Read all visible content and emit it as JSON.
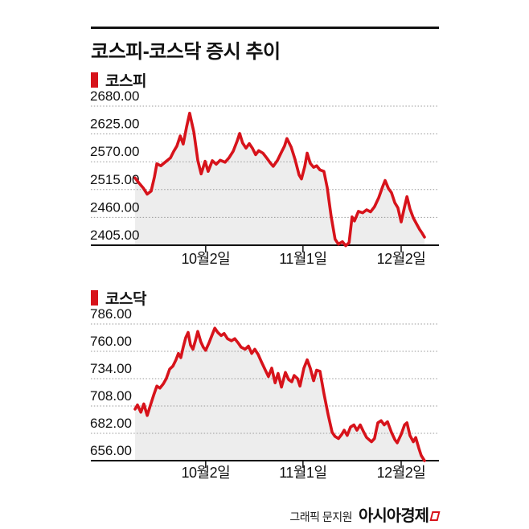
{
  "page": {
    "title": "코스피-코스닥 증시 추이"
  },
  "footer": {
    "credit": "그래픽 문지원",
    "brand": "아시아경제",
    "brand_mark_icon": "red-flag-mark"
  },
  "colors": {
    "accent": "#d7131b",
    "area_fill": "#ededed",
    "grid": "#9a9a9a",
    "axis": "#111111",
    "text": "#111111"
  },
  "chart_data": [
    {
      "type": "area",
      "title": "코스피",
      "ylim": [
        2405,
        2680
      ],
      "grid": "dotted-horizontal",
      "legend_position": "top-left",
      "y_ticks": [
        {
          "label": "2680.00",
          "value": 2680
        },
        {
          "label": "2625.00",
          "value": 2625
        },
        {
          "label": "2570.00",
          "value": 2570
        },
        {
          "label": "2515.00",
          "value": 2515
        },
        {
          "label": "2460.00",
          "value": 2460
        },
        {
          "label": "2405.00",
          "value": 2405
        }
      ],
      "x_ticks": [
        {
          "label": "10월2일",
          "xf": 0.233
        },
        {
          "label": "11월1일",
          "xf": 0.554
        },
        {
          "label": "12월2일",
          "xf": 0.878
        }
      ],
      "points": [
        [
          0.0,
          2538
        ],
        [
          0.013,
          2528
        ],
        [
          0.027,
          2518
        ],
        [
          0.04,
          2506
        ],
        [
          0.053,
          2512
        ],
        [
          0.064,
          2540
        ],
        [
          0.072,
          2566
        ],
        [
          0.085,
          2562
        ],
        [
          0.101,
          2570
        ],
        [
          0.117,
          2578
        ],
        [
          0.127,
          2590
        ],
        [
          0.138,
          2601
        ],
        [
          0.149,
          2621
        ],
        [
          0.159,
          2605
        ],
        [
          0.17,
          2639
        ],
        [
          0.18,
          2666
        ],
        [
          0.194,
          2629
        ],
        [
          0.207,
          2573
        ],
        [
          0.218,
          2546
        ],
        [
          0.231,
          2571
        ],
        [
          0.241,
          2551
        ],
        [
          0.255,
          2572
        ],
        [
          0.268,
          2565
        ],
        [
          0.281,
          2573
        ],
        [
          0.297,
          2569
        ],
        [
          0.31,
          2578
        ],
        [
          0.324,
          2591
        ],
        [
          0.337,
          2611
        ],
        [
          0.345,
          2626
        ],
        [
          0.355,
          2607
        ],
        [
          0.366,
          2597
        ],
        [
          0.377,
          2606
        ],
        [
          0.387,
          2597
        ],
        [
          0.398,
          2584
        ],
        [
          0.408,
          2592
        ],
        [
          0.422,
          2587
        ],
        [
          0.435,
          2577
        ],
        [
          0.446,
          2568
        ],
        [
          0.456,
          2561
        ],
        [
          0.47,
          2573
        ],
        [
          0.483,
          2589
        ],
        [
          0.493,
          2601
        ],
        [
          0.501,
          2616
        ],
        [
          0.515,
          2599
        ],
        [
          0.528,
          2574
        ],
        [
          0.541,
          2544
        ],
        [
          0.549,
          2536
        ],
        [
          0.56,
          2561
        ],
        [
          0.568,
          2587
        ],
        [
          0.578,
          2567
        ],
        [
          0.589,
          2559
        ],
        [
          0.599,
          2562
        ],
        [
          0.61,
          2554
        ],
        [
          0.623,
          2551
        ],
        [
          0.634,
          2519
        ],
        [
          0.647,
          2462
        ],
        [
          0.66,
          2417
        ],
        [
          0.671,
          2407
        ],
        [
          0.684,
          2412
        ],
        [
          0.695,
          2404
        ],
        [
          0.706,
          2410
        ],
        [
          0.716,
          2461
        ],
        [
          0.724,
          2453
        ],
        [
          0.737,
          2472
        ],
        [
          0.751,
          2469
        ],
        [
          0.764,
          2475
        ],
        [
          0.777,
          2471
        ],
        [
          0.79,
          2481
        ],
        [
          0.804,
          2499
        ],
        [
          0.817,
          2521
        ],
        [
          0.825,
          2533
        ],
        [
          0.836,
          2517
        ],
        [
          0.846,
          2509
        ],
        [
          0.857,
          2489
        ],
        [
          0.867,
          2479
        ],
        [
          0.878,
          2451
        ],
        [
          0.889,
          2481
        ],
        [
          0.897,
          2501
        ],
        [
          0.907,
          2477
        ],
        [
          0.918,
          2459
        ],
        [
          0.929,
          2447
        ],
        [
          0.939,
          2436
        ],
        [
          0.947,
          2429
        ],
        [
          0.955,
          2421
        ]
      ]
    },
    {
      "type": "area",
      "title": "코스닥",
      "ylim": [
        656,
        786
      ],
      "grid": "dotted-horizontal",
      "legend_position": "top-left",
      "y_ticks": [
        {
          "label": "786.00",
          "value": 786
        },
        {
          "label": "760.00",
          "value": 760
        },
        {
          "label": "734.00",
          "value": 734
        },
        {
          "label": "708.00",
          "value": 708
        },
        {
          "label": "682.00",
          "value": 682
        },
        {
          "label": "656.00",
          "value": 656
        }
      ],
      "x_ticks": [
        {
          "label": "10월2일",
          "xf": 0.233
        },
        {
          "label": "11월1일",
          "xf": 0.554
        },
        {
          "label": "12월2일",
          "xf": 0.878
        }
      ],
      "points": [
        [
          0.0,
          705
        ],
        [
          0.008,
          709
        ],
        [
          0.019,
          702
        ],
        [
          0.029,
          710
        ],
        [
          0.04,
          699
        ],
        [
          0.05,
          708
        ],
        [
          0.061,
          718
        ],
        [
          0.072,
          727
        ],
        [
          0.082,
          725
        ],
        [
          0.093,
          729
        ],
        [
          0.103,
          734
        ],
        [
          0.114,
          743
        ],
        [
          0.125,
          746
        ],
        [
          0.135,
          752
        ],
        [
          0.143,
          758
        ],
        [
          0.151,
          754
        ],
        [
          0.159,
          764
        ],
        [
          0.167,
          773
        ],
        [
          0.175,
          778
        ],
        [
          0.183,
          766
        ],
        [
          0.191,
          762
        ],
        [
          0.199,
          770
        ],
        [
          0.207,
          779
        ],
        [
          0.217,
          769
        ],
        [
          0.225,
          764
        ],
        [
          0.233,
          761
        ],
        [
          0.244,
          768
        ],
        [
          0.252,
          774
        ],
        [
          0.263,
          782
        ],
        [
          0.273,
          778
        ],
        [
          0.284,
          775
        ],
        [
          0.294,
          777
        ],
        [
          0.305,
          772
        ],
        [
          0.318,
          770
        ],
        [
          0.329,
          772
        ],
        [
          0.34,
          768
        ],
        [
          0.35,
          764
        ],
        [
          0.363,
          762
        ],
        [
          0.374,
          765
        ],
        [
          0.385,
          758
        ],
        [
          0.395,
          762
        ],
        [
          0.406,
          757
        ],
        [
          0.417,
          750
        ],
        [
          0.43,
          742
        ],
        [
          0.44,
          736
        ],
        [
          0.451,
          744
        ],
        [
          0.462,
          730
        ],
        [
          0.472,
          739
        ],
        [
          0.483,
          726
        ],
        [
          0.496,
          740
        ],
        [
          0.507,
          733
        ],
        [
          0.517,
          731
        ],
        [
          0.525,
          737
        ],
        [
          0.536,
          734
        ],
        [
          0.544,
          727
        ],
        [
          0.557,
          744
        ],
        [
          0.568,
          752
        ],
        [
          0.578,
          744
        ],
        [
          0.589,
          732
        ],
        [
          0.599,
          742
        ],
        [
          0.61,
          741
        ],
        [
          0.623,
          720
        ],
        [
          0.637,
          700
        ],
        [
          0.65,
          683
        ],
        [
          0.66,
          679
        ],
        [
          0.671,
          677
        ],
        [
          0.682,
          681
        ],
        [
          0.69,
          685
        ],
        [
          0.7,
          680
        ],
        [
          0.711,
          688
        ],
        [
          0.722,
          690
        ],
        [
          0.732,
          685
        ],
        [
          0.743,
          690
        ],
        [
          0.753,
          684
        ],
        [
          0.764,
          678
        ],
        [
          0.78,
          674
        ],
        [
          0.79,
          677
        ],
        [
          0.801,
          692
        ],
        [
          0.812,
          694
        ],
        [
          0.822,
          690
        ],
        [
          0.833,
          693
        ],
        [
          0.846,
          683
        ],
        [
          0.857,
          676
        ],
        [
          0.865,
          673
        ],
        [
          0.878,
          681
        ],
        [
          0.889,
          690
        ],
        [
          0.897,
          692
        ],
        [
          0.907,
          680
        ],
        [
          0.918,
          674
        ],
        [
          0.926,
          678
        ],
        [
          0.936,
          668
        ],
        [
          0.944,
          661
        ],
        [
          0.955,
          656
        ]
      ]
    }
  ]
}
